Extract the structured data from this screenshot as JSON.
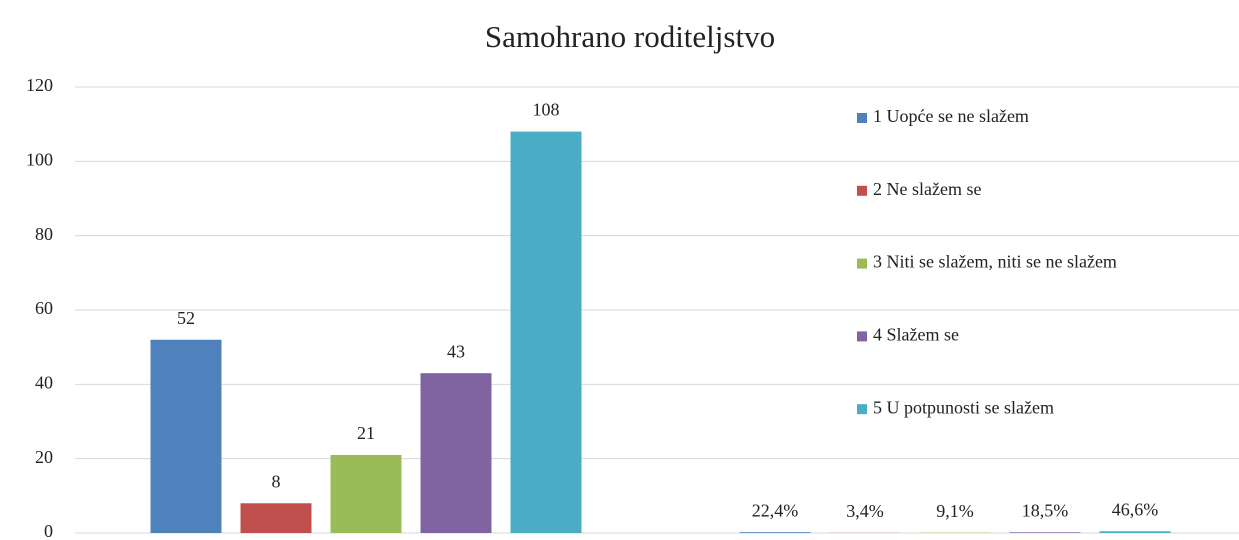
{
  "chart_data": {
    "type": "bar",
    "title": "Samohrano roditeljstvo",
    "categories": [
      null,
      null
    ],
    "series": [
      {
        "name": "1 Uopće se ne slažem",
        "color": "#4f81bd",
        "values": [
          52,
          0.224
        ],
        "value_labels": [
          "52",
          "22,4%"
        ]
      },
      {
        "name": "2 Ne slažem se",
        "color": "#c0504d",
        "values": [
          8,
          0.034
        ],
        "value_labels": [
          "8",
          "3,4%"
        ]
      },
      {
        "name": "3 Niti se slažem, niti se ne slažem",
        "color": "#9bbb59",
        "values": [
          21,
          0.091
        ],
        "value_labels": [
          "21",
          "9,1%"
        ]
      },
      {
        "name": "4 Slažem se",
        "color": "#8064a2",
        "values": [
          43,
          0.185
        ],
        "value_labels": [
          "43",
          "18,5%"
        ]
      },
      {
        "name": "5 U potpunosti se slažem",
        "color": "#4bacc6",
        "values": [
          108,
          0.466
        ],
        "value_labels": [
          "108",
          "46,6%"
        ]
      }
    ],
    "ylim": [
      0,
      120
    ],
    "yticks": [
      0,
      20,
      40,
      60,
      80,
      100,
      120
    ],
    "grid": true,
    "legend": "right"
  }
}
